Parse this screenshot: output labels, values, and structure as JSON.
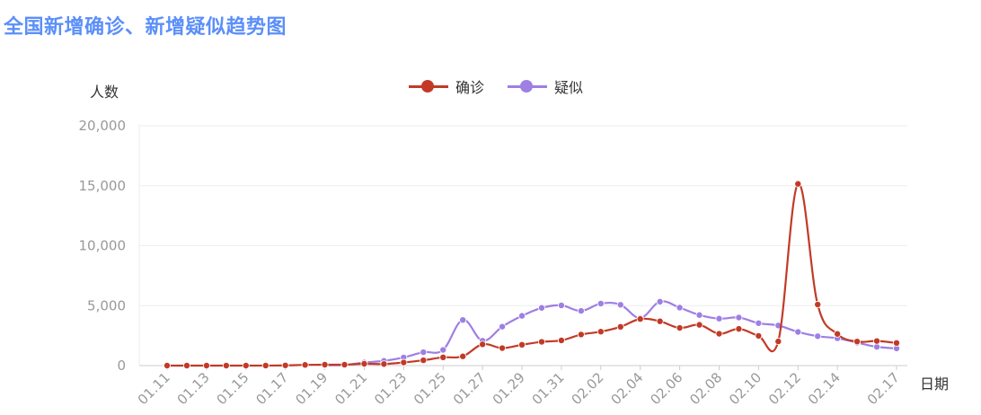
{
  "page_title": "全国新增确诊、新增疑似趋势图",
  "legend": [
    {
      "label": "确诊",
      "color": "#c23a27"
    },
    {
      "label": "疑似",
      "color": "#9e7fe3"
    }
  ],
  "chart_data": {
    "type": "line",
    "title": "全国新增确诊、新增疑似趋势图",
    "xlabel": "日期",
    "ylabel": "人数",
    "ylim": [
      0,
      20000
    ],
    "y_ticks": [
      "0",
      "5,000",
      "10,000",
      "15,000",
      "20,000"
    ],
    "x_ticks": [
      "01.11",
      "01.13",
      "01.15",
      "01.17",
      "01.19",
      "01.21",
      "01.23",
      "01.25",
      "01.27",
      "01.29",
      "01.31",
      "02.02",
      "02.04",
      "02.06",
      "02.08",
      "02.10",
      "02.12",
      "02.14",
      "02.17"
    ],
    "grid": true,
    "legend_position": "top",
    "series": [
      {
        "name": "确诊",
        "color": "#c23a27",
        "points": [
          [
            "01.11",
            0
          ],
          [
            "01.12",
            0
          ],
          [
            "01.13",
            0
          ],
          [
            "01.14",
            0
          ],
          [
            "01.15",
            0
          ],
          [
            "01.16",
            4
          ],
          [
            "01.17",
            17
          ],
          [
            "01.18",
            59
          ],
          [
            "01.19",
            77
          ],
          [
            "01.20",
            77
          ],
          [
            "01.21",
            149
          ],
          [
            "01.22",
            131
          ],
          [
            "01.23",
            259
          ],
          [
            "01.24",
            444
          ],
          [
            "01.25",
            688
          ],
          [
            "01.26",
            769
          ],
          [
            "01.27",
            1771
          ],
          [
            "01.28",
            1459
          ],
          [
            "01.29",
            1737
          ],
          [
            "01.30",
            1982
          ],
          [
            "01.31",
            2102
          ],
          [
            "02.01",
            2590
          ],
          [
            "02.02",
            2829
          ],
          [
            "02.03",
            3235
          ],
          [
            "02.04",
            3887
          ],
          [
            "02.05",
            3694
          ],
          [
            "02.06",
            3143
          ],
          [
            "02.07",
            3399
          ],
          [
            "02.08",
            2656
          ],
          [
            "02.09",
            3062
          ],
          [
            "02.10",
            2478
          ],
          [
            "02.11",
            2015
          ],
          [
            "02.12",
            15152
          ],
          [
            "02.13",
            5090
          ],
          [
            "02.14",
            2641
          ],
          [
            "02.15",
            2009
          ],
          [
            "02.16",
            2048
          ],
          [
            "02.17",
            1886
          ]
        ]
      },
      {
        "name": "疑似",
        "color": "#9e7fe3",
        "points": [
          [
            "01.19",
            27
          ],
          [
            "01.20",
            54
          ],
          [
            "01.21",
            257
          ],
          [
            "01.22",
            393
          ],
          [
            "01.23",
            680
          ],
          [
            "01.24",
            1118
          ],
          [
            "01.25",
            1309
          ],
          [
            "01.26",
            3806
          ],
          [
            "01.27",
            2077
          ],
          [
            "01.28",
            3248
          ],
          [
            "01.29",
            4148
          ],
          [
            "01.30",
            4812
          ],
          [
            "01.31",
            5019
          ],
          [
            "02.01",
            4562
          ],
          [
            "02.02",
            5173
          ],
          [
            "02.03",
            5072
          ],
          [
            "02.04",
            3971
          ],
          [
            "02.05",
            5328
          ],
          [
            "02.06",
            4833
          ],
          [
            "02.07",
            4214
          ],
          [
            "02.08",
            3916
          ],
          [
            "02.09",
            4008
          ],
          [
            "02.10",
            3536
          ],
          [
            "02.11",
            3342
          ],
          [
            "02.12",
            2807
          ],
          [
            "02.13",
            2450
          ],
          [
            "02.14",
            2277
          ],
          [
            "02.15",
            1918
          ],
          [
            "02.16",
            1563
          ],
          [
            "02.17",
            1432
          ]
        ]
      }
    ]
  }
}
